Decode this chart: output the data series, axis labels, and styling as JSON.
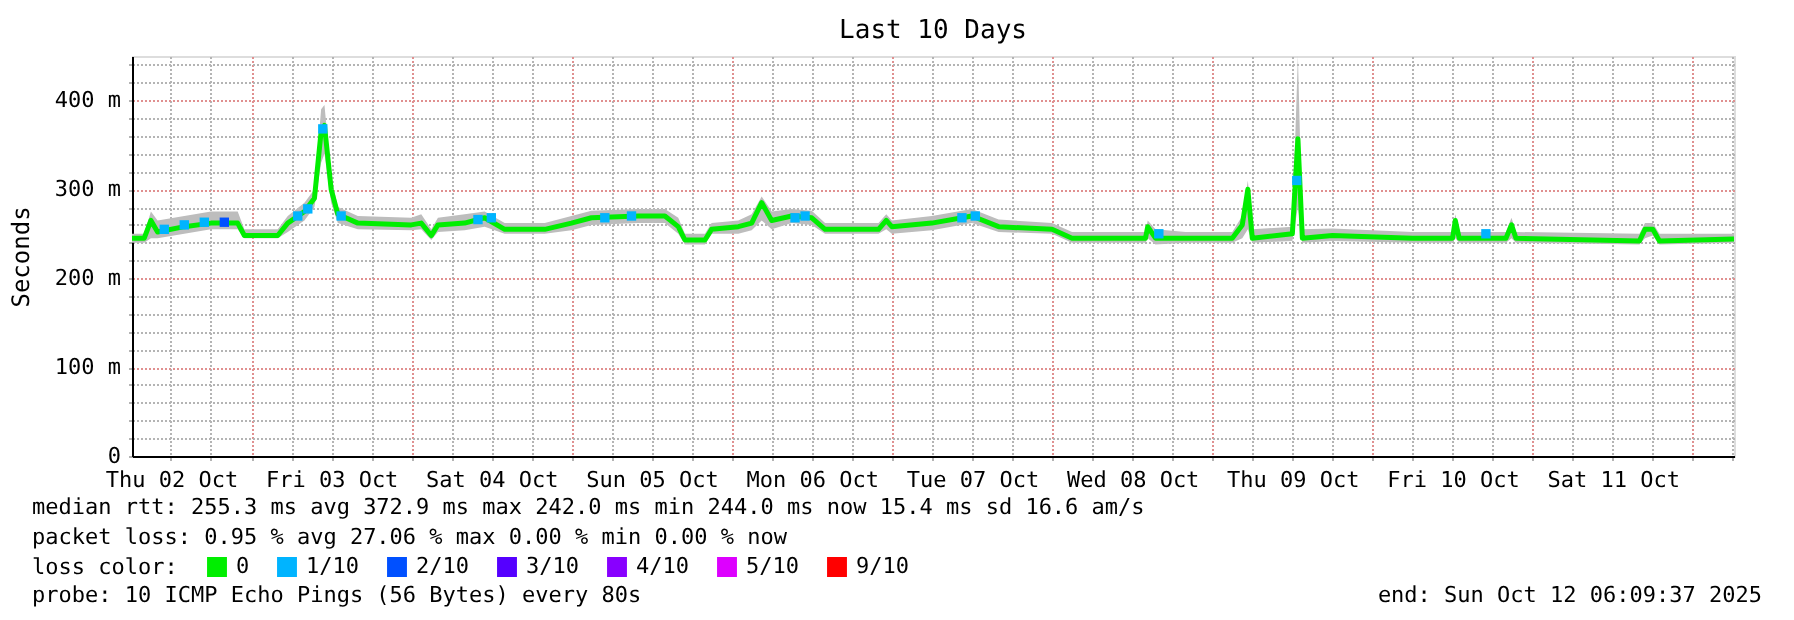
{
  "chart_data": {
    "type": "line",
    "title": "Last 10 Days",
    "ylabel": "Seconds",
    "legend_title": "loss color:",
    "legend": "bottom left",
    "xlim": [
      "2025-10-02T06:10",
      "2025-10-12T06:10"
    ],
    "xticks": [
      {
        "value": "2025-10-02T12:00",
        "label": "Thu 02 Oct"
      },
      {
        "value": "2025-10-02T18:00",
        "label": null
      },
      {
        "value": "2025-10-03T00:00",
        "label": null
      },
      {
        "value": "2025-10-03T06:00",
        "label": null
      },
      {
        "value": "2025-10-03T12:00",
        "label": "Fri 03 Oct"
      },
      {
        "value": "2025-10-03T18:00",
        "label": null
      },
      {
        "value": "2025-10-04T00:00",
        "label": null
      },
      {
        "value": "2025-10-04T06:00",
        "label": null
      },
      {
        "value": "2025-10-04T12:00",
        "label": "Sat 04 Oct"
      },
      {
        "value": "2025-10-04T18:00",
        "label": null
      },
      {
        "value": "2025-10-05T00:00",
        "label": null
      },
      {
        "value": "2025-10-05T06:00",
        "label": null
      },
      {
        "value": "2025-10-05T12:00",
        "label": "Sun 05 Oct"
      },
      {
        "value": "2025-10-05T18:00",
        "label": null
      },
      {
        "value": "2025-10-06T00:00",
        "label": null
      },
      {
        "value": "2025-10-06T06:00",
        "label": null
      },
      {
        "value": "2025-10-06T12:00",
        "label": "Mon 06 Oct"
      },
      {
        "value": "2025-10-06T18:00",
        "label": null
      },
      {
        "value": "2025-10-07T00:00",
        "label": null
      },
      {
        "value": "2025-10-07T06:00",
        "label": null
      },
      {
        "value": "2025-10-07T12:00",
        "label": "Tue 07 Oct"
      },
      {
        "value": "2025-10-07T18:00",
        "label": null
      },
      {
        "value": "2025-10-08T00:00",
        "label": null
      },
      {
        "value": "2025-10-08T06:00",
        "label": null
      },
      {
        "value": "2025-10-08T12:00",
        "label": "Wed 08 Oct"
      },
      {
        "value": "2025-10-08T18:00",
        "label": null
      },
      {
        "value": "2025-10-09T00:00",
        "label": null
      },
      {
        "value": "2025-10-09T06:00",
        "label": null
      },
      {
        "value": "2025-10-09T12:00",
        "label": "Thu 09 Oct"
      },
      {
        "value": "2025-10-09T18:00",
        "label": null
      },
      {
        "value": "2025-10-10T00:00",
        "label": null
      },
      {
        "value": "2025-10-10T06:00",
        "label": null
      },
      {
        "value": "2025-10-10T12:00",
        "label": "Fri 10 Oct"
      },
      {
        "value": "2025-10-10T18:00",
        "label": null
      },
      {
        "value": "2025-10-11T00:00",
        "label": null
      },
      {
        "value": "2025-10-11T06:00",
        "label": null
      },
      {
        "value": "2025-10-11T12:00",
        "label": "Sat 11 Oct"
      },
      {
        "value": "2025-10-11T18:00",
        "label": null
      },
      {
        "value": "2025-10-12T00:00",
        "label": null
      },
      {
        "value": "2025-10-12T06:00",
        "label": null
      }
    ],
    "ylim": [
      0,
      450
    ],
    "yticks": [
      0,
      {
        "value": 20,
        "label": null
      },
      {
        "value": 40,
        "label": null
      },
      {
        "value": 60,
        "label": null
      },
      {
        "value": 80,
        "label": null
      },
      {
        "value": 100,
        "label": "100 m"
      },
      {
        "value": 120,
        "label": null
      },
      {
        "value": 140,
        "label": null
      },
      {
        "value": 160,
        "label": null
      },
      {
        "value": 180,
        "label": null
      },
      {
        "value": 200,
        "label": "200 m"
      },
      {
        "value": 220,
        "label": null
      },
      {
        "value": 240,
        "label": null
      },
      {
        "value": 260,
        "label": null
      },
      {
        "value": 280,
        "label": null
      },
      {
        "value": 300,
        "label": "300 m"
      },
      {
        "value": 320,
        "label": null
      },
      {
        "value": 340,
        "label": null
      },
      {
        "value": 360,
        "label": null
      },
      {
        "value": 380,
        "label": null
      },
      {
        "value": 400,
        "label": "400 m"
      },
      {
        "value": 420,
        "label": null
      },
      {
        "value": 440,
        "label": null
      }
    ],
    "grid": true,
    "series": [
      {
        "name": "0",
        "color": "#00ee00",
        "type": "line",
        "x": [
          "2025-10-02T06:10",
          "2025-10-02T08:00",
          "2025-10-02T09:00",
          "2025-10-02T10:00",
          "2025-10-02T14:00",
          "2025-10-02T18:00",
          "2025-10-02T22:00",
          "2025-10-02T23:00",
          "2025-10-03T04:00",
          "2025-10-03T05:30",
          "2025-10-03T08:00",
          "2025-10-03T09:30",
          "2025-10-03T10:30",
          "2025-10-03T11:00",
          "2025-10-03T12:00",
          "2025-10-03T13:00",
          "2025-10-03T16:00",
          "2025-10-04T00:00",
          "2025-10-04T01:30",
          "2025-10-04T03:00",
          "2025-10-04T04:00",
          "2025-10-04T08:00",
          "2025-10-04T11:00",
          "2025-10-04T14:00",
          "2025-10-04T20:00",
          "2025-10-05T00:00",
          "2025-10-05T03:00",
          "2025-10-05T10:00",
          "2025-10-05T14:00",
          "2025-10-05T16:00",
          "2025-10-05T17:00",
          "2025-10-05T20:00",
          "2025-10-05T21:00",
          "2025-10-06T01:00",
          "2025-10-06T03:00",
          "2025-10-06T04:30",
          "2025-10-06T06:00",
          "2025-10-06T09:00",
          "2025-10-06T12:00",
          "2025-10-06T14:00",
          "2025-10-06T22:00",
          "2025-10-06T23:10",
          "2025-10-07T00:00",
          "2025-10-07T06:00",
          "2025-10-07T12:00",
          "2025-10-07T16:00",
          "2025-10-08T00:00",
          "2025-10-08T03:00",
          "2025-10-08T14:00",
          "2025-10-08T14:20",
          "2025-10-08T15:30",
          "2025-10-08T20:00",
          "2025-10-09T03:00",
          "2025-10-09T04:30",
          "2025-10-09T05:20",
          "2025-10-09T06:00",
          "2025-10-09T12:00",
          "2025-10-09T12:50",
          "2025-10-09T13:30",
          "2025-10-09T18:00",
          "2025-10-10T06:00",
          "2025-10-10T12:00",
          "2025-10-10T12:25",
          "2025-10-10T13:00",
          "2025-10-10T20:00",
          "2025-10-10T20:50",
          "2025-10-10T21:30",
          "2025-10-11T16:00",
          "2025-10-11T16:50",
          "2025-10-11T18:00",
          "2025-10-11T19:00",
          "2025-10-12T06:10"
        ],
        "values": [
          245,
          245,
          265,
          252,
          258,
          262,
          262,
          248,
          248,
          262,
          275,
          290,
          365,
          372,
          300,
          272,
          262,
          260,
          262,
          248,
          260,
          262,
          268,
          255,
          255,
          262,
          268,
          270,
          270,
          258,
          243,
          243,
          255,
          258,
          262,
          285,
          265,
          270,
          268,
          255,
          255,
          265,
          258,
          262,
          270,
          258,
          255,
          245,
          245,
          258,
          245,
          245,
          245,
          260,
          300,
          245,
          250,
          357,
          245,
          248,
          245,
          245,
          265,
          245,
          245,
          260,
          245,
          242,
          255,
          255,
          242,
          244
        ],
        "lower": [
          240,
          240,
          245,
          245,
          250,
          255,
          255,
          245,
          245,
          252,
          265,
          280,
          330,
          340,
          285,
          262,
          255,
          254,
          255,
          243,
          252,
          254,
          258,
          250,
          250,
          254,
          260,
          262,
          262,
          250,
          238,
          238,
          250,
          250,
          254,
          265,
          255,
          262,
          260,
          250,
          250,
          255,
          250,
          254,
          262,
          252,
          250,
          240,
          240,
          245,
          238,
          240,
          240,
          245,
          255,
          240,
          242,
          280,
          240,
          242,
          240,
          240,
          245,
          240,
          240,
          245,
          240,
          238,
          245,
          248,
          238,
          240
        ],
        "upper": [
          250,
          250,
          275,
          265,
          270,
          275,
          275,
          255,
          255,
          270,
          285,
          300,
          390,
          395,
          315,
          280,
          270,
          268,
          272,
          255,
          268,
          272,
          275,
          262,
          262,
          270,
          276,
          278,
          278,
          268,
          250,
          250,
          262,
          265,
          272,
          292,
          275,
          278,
          276,
          262,
          262,
          272,
          265,
          270,
          278,
          266,
          262,
          252,
          252,
          265,
          255,
          252,
          252,
          270,
          310,
          255,
          258,
          450,
          255,
          256,
          252,
          252,
          272,
          252,
          252,
          268,
          252,
          250,
          262,
          262,
          250,
          250
        ]
      },
      {
        "name": "1/10",
        "color": "#00b4ff",
        "type": "scatter",
        "x": [
          "2025-10-02T11:00",
          "2025-10-02T14:00",
          "2025-10-02T17:00",
          "2025-10-03T07:00",
          "2025-10-03T08:30",
          "2025-10-03T10:45",
          "2025-10-03T13:30",
          "2025-10-04T10:00",
          "2025-10-04T12:00",
          "2025-10-05T05:00",
          "2025-10-05T09:00",
          "2025-10-06T09:30",
          "2025-10-06T11:00",
          "2025-10-07T10:30",
          "2025-10-07T12:30",
          "2025-10-08T16:00",
          "2025-10-09T12:40",
          "2025-10-10T17:00"
        ],
        "values": [
          255,
          260,
          263,
          270,
          278,
          368,
          270,
          266,
          268,
          268,
          270,
          268,
          270,
          268,
          270,
          250,
          310,
          250
        ]
      },
      {
        "name": "2/10",
        "color": "#0050ff",
        "type": "scatter",
        "x": [
          "2025-10-02T20:00"
        ],
        "values": [
          263
        ]
      },
      {
        "name": "3/10",
        "color": "#5500ff",
        "type": "scatter"
      },
      {
        "name": "4/10",
        "color": "#8800ff",
        "type": "scatter"
      },
      {
        "name": "5/10",
        "color": "#dd00ff",
        "type": "scatter"
      },
      {
        "name": "9/10",
        "color": "#ff0000",
        "type": "scatter"
      }
    ],
    "annotations": [
      "median rtt:  255.3 ms avg  372.9 ms max  242.0 ms min  244.0 ms now  15.4 ms sd  16.6   am/s",
      "packet loss: 0.95 % avg  27.06 % max  0.00 % min  0.00 % now",
      "probe:       10 ICMP Echo Pings (56 Bytes) every 80s",
      "end: Sun Oct 12 06:09:37 2025"
    ]
  }
}
